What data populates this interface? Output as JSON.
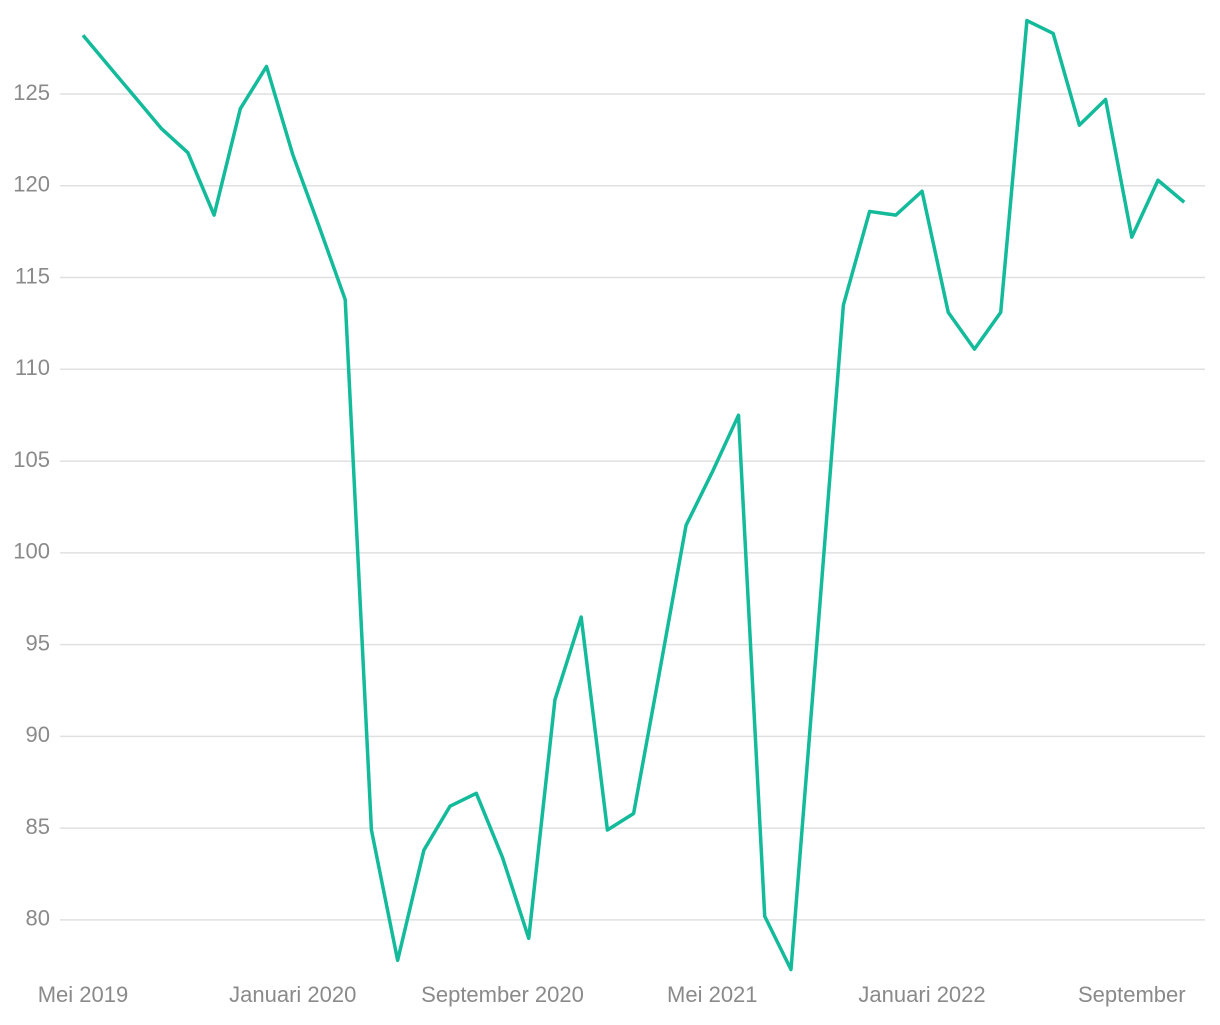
{
  "chart_data": {
    "type": "line",
    "categories": [
      "Mei 2019",
      null,
      null,
      null,
      null,
      null,
      null,
      null,
      "Januari 2020",
      null,
      null,
      null,
      null,
      null,
      null,
      null,
      "September 2020",
      null,
      null,
      null,
      null,
      null,
      null,
      null,
      "Mei 2021",
      null,
      null,
      null,
      null,
      null,
      null,
      null,
      "Januari 2022",
      null,
      null,
      null,
      null,
      null,
      null,
      null,
      "September",
      null,
      null
    ],
    "series": [
      {
        "color": "#13bb9b",
        "values": [
          128.2,
          126.5,
          124.8,
          123.1,
          121.8,
          118.4,
          124.2,
          126.5,
          121.7,
          117.8,
          113.8,
          84.9,
          77.8,
          83.8,
          86.2,
          86.9,
          83.4,
          79.0,
          92.0,
          96.5,
          84.9,
          85.8,
          93.6,
          101.5,
          104.4,
          107.5,
          80.2,
          77.3,
          95.3,
          113.5,
          118.6,
          118.4,
          119.7,
          113.1,
          111.1,
          113.1,
          129.0,
          128.3,
          123.3,
          124.7,
          117.2,
          120.3,
          119.1
        ]
      }
    ],
    "ylim": [
      77,
      130
    ],
    "yticks": [
      80,
      85,
      90,
      95,
      100,
      105,
      110,
      115,
      120,
      125
    ],
    "grid": true
  }
}
